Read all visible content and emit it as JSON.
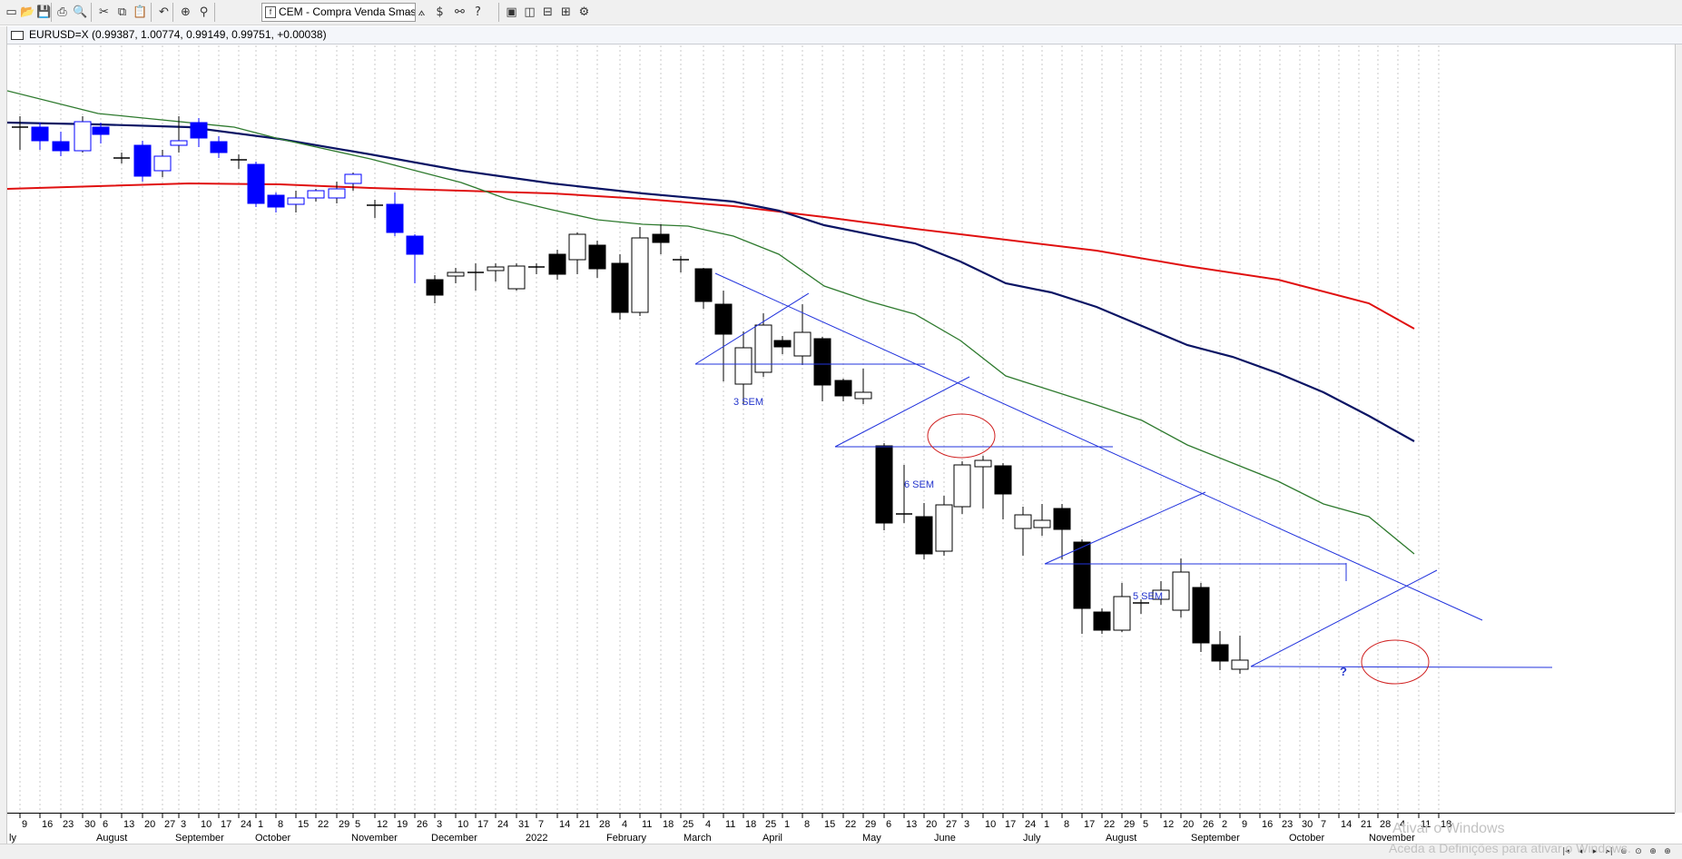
{
  "toolbar": {
    "buttons": [
      {
        "name": "new-file-icon",
        "glyph": "▭"
      },
      {
        "name": "open-folder-icon",
        "glyph": "📂"
      },
      {
        "name": "save-icon",
        "glyph": "💾"
      },
      {
        "name": "print-icon",
        "glyph": "⎙"
      },
      {
        "name": "print-preview-icon",
        "glyph": "🔍"
      },
      {
        "name": "cut-icon",
        "glyph": "✂"
      },
      {
        "name": "copy-icon",
        "glyph": "⧉"
      },
      {
        "name": "paste-icon",
        "glyph": "📋"
      },
      {
        "name": "undo-icon",
        "glyph": "↶"
      },
      {
        "name": "crosshair-icon",
        "glyph": "⊕"
      },
      {
        "name": "zoom-icon",
        "glyph": "⚲"
      },
      {
        "name": "expert-icon",
        "glyph": "☻"
      },
      {
        "name": "advisor-icon",
        "glyph": "♙"
      },
      {
        "name": "function-icon",
        "glyph": "ƒ"
      },
      {
        "name": "indicator-icon",
        "glyph": "⟑"
      },
      {
        "name": "dollar-icon",
        "glyph": "$"
      },
      {
        "name": "binoculars-icon",
        "glyph": "⚯"
      },
      {
        "name": "help-icon",
        "glyph": "?"
      },
      {
        "name": "cascade-windows-icon",
        "glyph": "▣"
      },
      {
        "name": "tile-vertical-icon",
        "glyph": "◫"
      },
      {
        "name": "tile-horizontal-icon",
        "glyph": "⊟"
      },
      {
        "name": "tile-grid-icon",
        "glyph": "⊞"
      },
      {
        "name": "settings-icon",
        "glyph": "⚙"
      }
    ],
    "strategy_combo": "CEM - Compra Venda Smash",
    "combo_icon": "f"
  },
  "chart": {
    "symbol_header": "EURUSD=X (0.99387, 1.00774, 0.99149, 0.99751, +0.00038)",
    "annotations": [
      "3 SEM",
      "6 SEM",
      "5 SEM",
      "?"
    ]
  },
  "axis": {
    "days": [
      "9",
      "16",
      "23",
      "30",
      "6",
      "13",
      "20",
      "27",
      "3",
      "10",
      "17",
      "24",
      "1",
      "8",
      "15",
      "22",
      "29",
      "5",
      "12",
      "19",
      "26",
      "3",
      "10",
      "17",
      "24",
      "31",
      "7",
      "14",
      "21",
      "28",
      "4",
      "11",
      "18",
      "25",
      "4",
      "11",
      "18",
      "25",
      "1",
      "8",
      "15",
      "22",
      "29",
      "6",
      "13",
      "20",
      "27",
      "3",
      "10",
      "17",
      "24",
      "1",
      "8",
      "17",
      "22",
      "29",
      "5",
      "12",
      "20",
      "26",
      "2",
      "9",
      "16",
      "23",
      "30",
      "7",
      "14",
      "21",
      "28",
      "4",
      "11",
      "18"
    ],
    "months": [
      "ly",
      "August",
      "September",
      "October",
      "November",
      "December",
      "2022",
      "February",
      "March",
      "April",
      "May",
      "June",
      "July",
      "August",
      "September",
      "October",
      "November"
    ]
  },
  "watermark": {
    "line1": "Ativar o Windows",
    "line2": "Aceda a Definições para ativar o Windows."
  },
  "colors": {
    "red_ma": "#e01010",
    "navy_ma": "#0a1464",
    "green_ma": "#2e7a2e",
    "trend_lines": "#2233dd",
    "circle": "#d02020",
    "candle_blue": "#0000ff",
    "candle_black": "#000000",
    "label_blue": "#2233cc"
  }
}
